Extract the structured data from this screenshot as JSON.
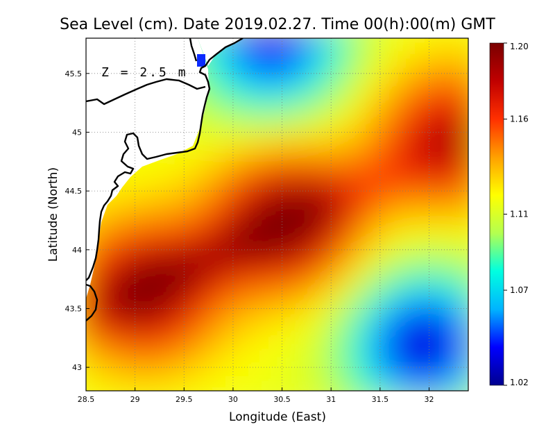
{
  "chart_data": {
    "type": "heatmap",
    "title": "Sea Level (cm). Date 2019.02.27. Time 00(h):00(m) GMT",
    "xlabel": "Longitude (East)",
    "ylabel": "Latitude (North)",
    "annotation": "Z = 2.5 m",
    "xlim": [
      28.5,
      32.4
    ],
    "ylim": [
      42.8,
      45.8
    ],
    "xticks": [
      {
        "value": 28.5,
        "label": "28.5"
      },
      {
        "value": 29,
        "label": "29"
      },
      {
        "value": 29.5,
        "label": "29.5"
      },
      {
        "value": 30,
        "label": "30"
      },
      {
        "value": 30.5,
        "label": "30.5"
      },
      {
        "value": 31,
        "label": "31"
      },
      {
        "value": 31.5,
        "label": "31.5"
      },
      {
        "value": 32,
        "label": "32"
      }
    ],
    "yticks": [
      {
        "value": 43,
        "label": "43"
      },
      {
        "value": 43.5,
        "label": "43.5"
      },
      {
        "value": 44,
        "label": "44"
      },
      {
        "value": 44.5,
        "label": "44.5"
      },
      {
        "value": 45,
        "label": "45"
      },
      {
        "value": 45.5,
        "label": "45.5"
      }
    ],
    "grid": true,
    "colorbar": {
      "min": 1.02,
      "max": 1.2,
      "ticks": [
        {
          "value": 1.2,
          "label": "1.20"
        },
        {
          "value": 1.16,
          "label": "1.16"
        },
        {
          "value": 1.11,
          "label": "1.11"
        },
        {
          "value": 1.07,
          "label": "1.07"
        },
        {
          "value": 1.02,
          "label": "1.02"
        }
      ],
      "colormap": [
        "#00008f",
        "#0000ff",
        "#00b4ff",
        "#00ffe0",
        "#b4ff50",
        "#ffff00",
        "#ffa000",
        "#ff3000",
        "#c00000",
        "#7a0000"
      ]
    },
    "field_features": [
      {
        "description": "main maximum",
        "lon": 30.55,
        "lat": 44.25,
        "value": 1.195
      },
      {
        "description": "western maximum",
        "lon": 29.1,
        "lat": 43.65,
        "value": 1.19
      },
      {
        "description": "eastern maximum",
        "lon": 32.2,
        "lat": 44.95,
        "value": 1.18
      },
      {
        "description": "south-east minimum",
        "lon": 31.95,
        "lat": 43.2,
        "value": 1.03
      },
      {
        "description": "northern minimum",
        "lon": 30.4,
        "lat": 45.75,
        "value": 1.04
      }
    ],
    "background_value": 1.115
  }
}
